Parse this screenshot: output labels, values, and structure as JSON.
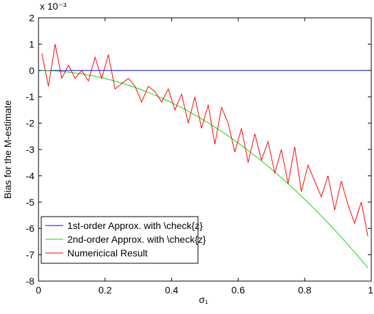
{
  "chart_data": {
    "type": "line",
    "y_label": "Bias for the M-estimate",
    "x_label": "σ₁",
    "y_multiplier": "x 10⁻³",
    "x": [
      0.01,
      0.03,
      0.05,
      0.07,
      0.09,
      0.11,
      0.13,
      0.15,
      0.17,
      0.19,
      0.21,
      0.23,
      0.25,
      0.27,
      0.29,
      0.31,
      0.33,
      0.35,
      0.37,
      0.39,
      0.41,
      0.43,
      0.45,
      0.47,
      0.49,
      0.51,
      0.53,
      0.55,
      0.57,
      0.59,
      0.61,
      0.63,
      0.65,
      0.67,
      0.69,
      0.71,
      0.73,
      0.75,
      0.77,
      0.79,
      0.81,
      0.83,
      0.85,
      0.87,
      0.89,
      0.91,
      0.93,
      0.95,
      0.97,
      0.99
    ],
    "series": [
      {
        "name": "1st-order Approx. with \\check{z}",
        "color": "#0000ff",
        "values": [
          0,
          0,
          0,
          0,
          0,
          0,
          0,
          0,
          0,
          0,
          0,
          0,
          0,
          0,
          0,
          0,
          0,
          0,
          0,
          0,
          0,
          0,
          0,
          0,
          0,
          0,
          0,
          0,
          0,
          0,
          0,
          0,
          0,
          0,
          0,
          0,
          0,
          0,
          0,
          0,
          0,
          0,
          0,
          0,
          0,
          0,
          0,
          0,
          0,
          0
        ]
      },
      {
        "name": "2nd-order Approx. with \\check{z}",
        "color": "#00e000",
        "values": [
          -0.001,
          -0.007,
          -0.019,
          -0.037,
          -0.062,
          -0.093,
          -0.129,
          -0.172,
          -0.221,
          -0.276,
          -0.337,
          -0.405,
          -0.478,
          -0.558,
          -0.643,
          -0.735,
          -0.833,
          -0.937,
          -1.047,
          -1.164,
          -1.286,
          -1.414,
          -1.549,
          -1.69,
          -1.837,
          -1.99,
          -2.149,
          -2.314,
          -2.485,
          -2.663,
          -2.847,
          -3.036,
          -3.232,
          -3.434,
          -3.642,
          -3.856,
          -4.077,
          -4.303,
          -4.536,
          -4.774,
          -5.019,
          -5.27,
          -5.527,
          -5.79,
          -6.06,
          -6.335,
          -6.617,
          -6.904,
          -7.198,
          -7.498
        ]
      },
      {
        "name": "Numericical Result",
        "color": "#ff0000",
        "values": [
          0.65,
          -0.6,
          1.0,
          -0.3,
          0.2,
          -0.3,
          0.0,
          -0.4,
          0.5,
          -0.3,
          0.6,
          -0.7,
          -0.5,
          -0.3,
          -0.6,
          -1.2,
          -0.6,
          -0.8,
          -1.2,
          -0.7,
          -1.5,
          -0.9,
          -2.0,
          -1.0,
          -2.2,
          -1.3,
          -2.8,
          -1.4,
          -2.0,
          -3.1,
          -2.2,
          -3.5,
          -2.4,
          -3.4,
          -2.7,
          -3.9,
          -3.0,
          -4.3,
          -2.9,
          -4.6,
          -3.6,
          -4.2,
          -4.8,
          -4.0,
          -5.3,
          -4.2,
          -5.1,
          -5.8,
          -5.0,
          -6.3
        ]
      }
    ],
    "xlim": [
      0,
      1
    ],
    "xticks": [
      0,
      0.2,
      0.4,
      0.6,
      0.8,
      1
    ],
    "ylim": [
      -8,
      2
    ],
    "yticks": [
      -8,
      -7,
      -6,
      -5,
      -4,
      -3,
      -2,
      -1,
      0,
      1,
      2
    ],
    "legend": "lower left",
    "grid": false
  }
}
